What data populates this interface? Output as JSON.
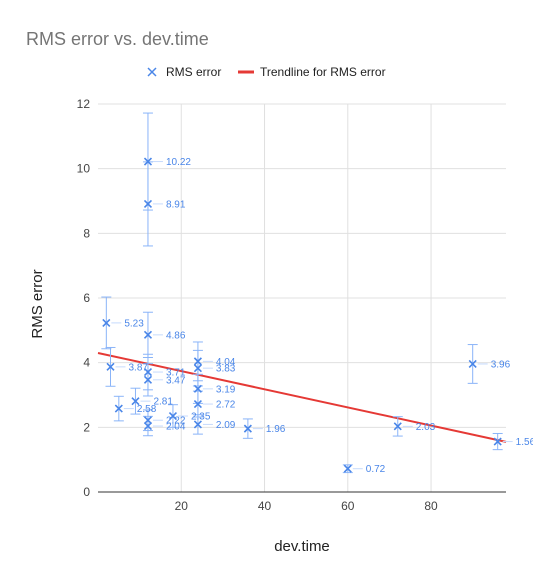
{
  "chart_data": {
    "type": "scatter",
    "title": "RMS error vs. dev.time",
    "xlabel": "dev.time",
    "ylabel": "RMS error",
    "xlim": [
      0,
      98
    ],
    "ylim": [
      0,
      12
    ],
    "x_ticks": [
      20,
      40,
      60,
      80
    ],
    "y_ticks": [
      0,
      2,
      4,
      6,
      8,
      10,
      12
    ],
    "grid": true,
    "legend_position": "top",
    "series": [
      {
        "name": "RMS error",
        "color": "#4a86e8",
        "marker": "x",
        "points": [
          {
            "x": 12,
            "y": 10.22,
            "err": 1.5,
            "label": "10.22"
          },
          {
            "x": 12,
            "y": 8.91,
            "err": 1.3,
            "label": "8.91"
          },
          {
            "x": 2,
            "y": 5.23,
            "err": 0.8,
            "label": "5.23"
          },
          {
            "x": 12,
            "y": 4.86,
            "err": 0.7,
            "label": "4.86"
          },
          {
            "x": 24,
            "y": 4.04,
            "err": 0.6,
            "label": "4.04"
          },
          {
            "x": 90,
            "y": 3.96,
            "err": 0.6,
            "label": "3.96"
          },
          {
            "x": 3,
            "y": 3.87,
            "err": 0.6,
            "label": "3.87"
          },
          {
            "x": 24,
            "y": 3.83,
            "err": 0.55,
            "label": "3.83"
          },
          {
            "x": 12,
            "y": 3.71,
            "err": 0.55,
            "label": "3.71"
          },
          {
            "x": 12,
            "y": 3.47,
            "err": 0.5,
            "label": "3.47"
          },
          {
            "x": 24,
            "y": 3.19,
            "err": 0.45,
            "label": "3.19"
          },
          {
            "x": 9,
            "y": 2.81,
            "err": 0.4,
            "label": "2.81"
          },
          {
            "x": 24,
            "y": 2.72,
            "err": 0.4,
            "label": "2.72"
          },
          {
            "x": 5,
            "y": 2.58,
            "err": 0.38,
            "label": "2.58"
          },
          {
            "x": 18,
            "y": 2.35,
            "err": 0.35,
            "label": "2.35"
          },
          {
            "x": 12,
            "y": 2.22,
            "err": 0.32,
            "label": "2.22"
          },
          {
            "x": 24,
            "y": 2.09,
            "err": 0.3,
            "label": "2.09"
          },
          {
            "x": 72,
            "y": 2.03,
            "err": 0.3,
            "label": "2.03"
          },
          {
            "x": 12,
            "y": 2.04,
            "err": 0.3,
            "label": "2.04"
          },
          {
            "x": 36,
            "y": 1.96,
            "err": 0.3,
            "label": "1.96"
          },
          {
            "x": 96,
            "y": 1.56,
            "err": 0.25,
            "label": "1.56"
          },
          {
            "x": 60,
            "y": 0.72,
            "err": 0.12,
            "label": "0.72"
          }
        ]
      }
    ],
    "trendline": {
      "name": "Trendline for RMS error",
      "color": "#e53935",
      "x": [
        0,
        98
      ],
      "y": [
        4.3,
        1.55
      ]
    }
  }
}
